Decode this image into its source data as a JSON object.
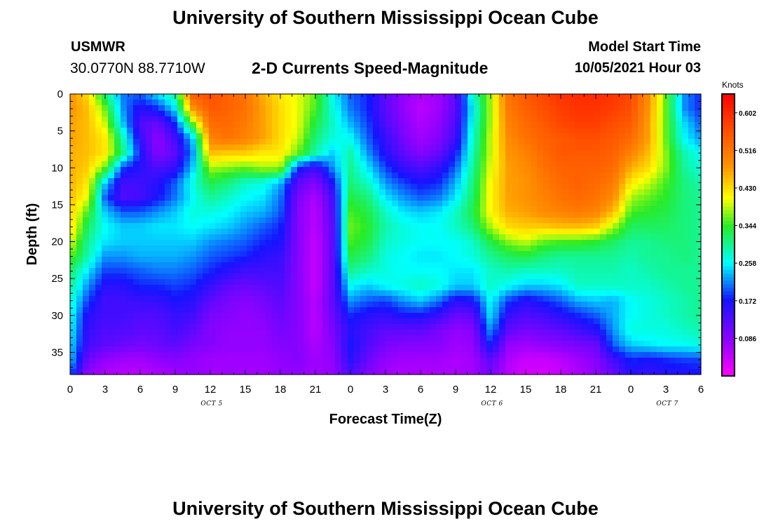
{
  "page": {
    "top_title": "University of Southern Mississippi Ocean Cube",
    "bottom_title": "University of Southern Mississippi Ocean Cube",
    "station": "USMWR",
    "coords": "30.0770N  88.7710W",
    "chart_title": "2-D Currents Speed-Magnitude",
    "model_start_label": "Model Start Time",
    "model_start_value": "10/05/2021 Hour 03"
  },
  "chart_data": {
    "type": "heatmap",
    "title": "2-D Currents Speed-Magnitude",
    "xlabel": "Forecast Time(Z)",
    "ylabel": "Depth (ft)",
    "x_range_hours": [
      0,
      54
    ],
    "y_range_ft": [
      0,
      38
    ],
    "x_tick_labels": [
      "0",
      "3",
      "6",
      "9",
      "12",
      "15",
      "18",
      "21",
      "0",
      "3",
      "6",
      "9",
      "12",
      "15",
      "18",
      "21",
      "0",
      "3",
      "6"
    ],
    "y_tick_labels": [
      "0",
      "5",
      "10",
      "15",
      "20",
      "25",
      "30",
      "35"
    ],
    "y_tick_values": [
      0,
      5,
      10,
      15,
      20,
      25,
      30,
      35
    ],
    "date_labels": [
      {
        "text": "OCT 5",
        "hour": 12
      },
      {
        "text": "OCT 6",
        "hour": 36
      },
      {
        "text": "OCT 7",
        "hour": 51
      }
    ],
    "colorbar": {
      "unit": "Knots",
      "range": [
        0.0,
        0.645
      ],
      "tick_labels": [
        "0.602",
        "0.516",
        "0.430",
        "0.344",
        "0.258",
        "0.172",
        "0.086"
      ],
      "tick_values": [
        0.602,
        0.516,
        0.43,
        0.344,
        0.258,
        0.172,
        0.086
      ]
    },
    "time_hours": [
      0,
      1.5,
      3,
      4.5,
      6,
      7.5,
      9,
      10.5,
      12,
      13.5,
      15,
      16.5,
      18,
      19.5,
      21,
      22.5,
      24,
      25.5,
      27,
      28.5,
      30,
      31.5,
      33,
      34.5,
      36,
      37.5,
      39,
      40.5,
      42,
      43.5,
      45,
      46.5,
      48,
      49.5,
      51,
      52.5,
      54
    ],
    "depths_ft": [
      0,
      2,
      4,
      6,
      8,
      10,
      12,
      14,
      16,
      18,
      20,
      22,
      24,
      26,
      28,
      30,
      32,
      34,
      36,
      38
    ],
    "speed_knots": [
      [
        0.48,
        0.43,
        0.31,
        0.21,
        0.2,
        0.25,
        0.3,
        0.55,
        0.56,
        0.54,
        0.52,
        0.46,
        0.42,
        0.4,
        0.36,
        0.26,
        0.2,
        0.18,
        0.12,
        0.08,
        0.06,
        0.07,
        0.12,
        0.28,
        0.38,
        0.52,
        0.55,
        0.57,
        0.59,
        0.6,
        0.6,
        0.59,
        0.57,
        0.49,
        0.36,
        0.22,
        0.18
      ],
      [
        0.48,
        0.45,
        0.36,
        0.22,
        0.16,
        0.18,
        0.25,
        0.48,
        0.55,
        0.54,
        0.52,
        0.47,
        0.43,
        0.4,
        0.35,
        0.27,
        0.21,
        0.18,
        0.12,
        0.08,
        0.05,
        0.07,
        0.12,
        0.26,
        0.38,
        0.51,
        0.54,
        0.56,
        0.58,
        0.59,
        0.59,
        0.58,
        0.56,
        0.48,
        0.36,
        0.22,
        0.18
      ],
      [
        0.47,
        0.45,
        0.39,
        0.24,
        0.13,
        0.11,
        0.18,
        0.36,
        0.53,
        0.53,
        0.51,
        0.47,
        0.43,
        0.4,
        0.33,
        0.28,
        0.23,
        0.19,
        0.13,
        0.09,
        0.06,
        0.08,
        0.13,
        0.27,
        0.38,
        0.5,
        0.53,
        0.55,
        0.57,
        0.58,
        0.58,
        0.56,
        0.55,
        0.47,
        0.36,
        0.25,
        0.2
      ],
      [
        0.47,
        0.45,
        0.42,
        0.29,
        0.15,
        0.08,
        0.14,
        0.24,
        0.5,
        0.52,
        0.5,
        0.47,
        0.43,
        0.39,
        0.31,
        0.27,
        0.26,
        0.2,
        0.15,
        0.1,
        0.07,
        0.09,
        0.14,
        0.28,
        0.39,
        0.49,
        0.52,
        0.54,
        0.55,
        0.56,
        0.56,
        0.55,
        0.53,
        0.47,
        0.36,
        0.26,
        0.22
      ],
      [
        0.46,
        0.45,
        0.42,
        0.31,
        0.17,
        0.09,
        0.12,
        0.22,
        0.45,
        0.44,
        0.44,
        0.42,
        0.42,
        0.36,
        0.29,
        0.24,
        0.29,
        0.22,
        0.16,
        0.12,
        0.09,
        0.11,
        0.17,
        0.29,
        0.39,
        0.48,
        0.5,
        0.53,
        0.55,
        0.55,
        0.55,
        0.54,
        0.5,
        0.45,
        0.37,
        0.29,
        0.26
      ],
      [
        0.46,
        0.44,
        0.36,
        0.19,
        0.16,
        0.13,
        0.15,
        0.24,
        0.38,
        0.37,
        0.36,
        0.38,
        0.38,
        0.18,
        0.14,
        0.22,
        0.3,
        0.25,
        0.19,
        0.15,
        0.13,
        0.15,
        0.2,
        0.3,
        0.4,
        0.47,
        0.49,
        0.52,
        0.54,
        0.54,
        0.54,
        0.53,
        0.46,
        0.43,
        0.37,
        0.3,
        0.27
      ],
      [
        0.46,
        0.42,
        0.24,
        0.14,
        0.14,
        0.16,
        0.2,
        0.27,
        0.33,
        0.31,
        0.28,
        0.27,
        0.23,
        0.12,
        0.09,
        0.17,
        0.31,
        0.28,
        0.22,
        0.19,
        0.17,
        0.18,
        0.23,
        0.31,
        0.41,
        0.47,
        0.48,
        0.51,
        0.53,
        0.54,
        0.53,
        0.51,
        0.42,
        0.39,
        0.35,
        0.31,
        0.29
      ],
      [
        0.45,
        0.4,
        0.2,
        0.13,
        0.14,
        0.17,
        0.21,
        0.26,
        0.3,
        0.28,
        0.26,
        0.25,
        0.21,
        0.1,
        0.06,
        0.14,
        0.33,
        0.31,
        0.25,
        0.22,
        0.2,
        0.21,
        0.25,
        0.32,
        0.41,
        0.47,
        0.48,
        0.5,
        0.52,
        0.53,
        0.52,
        0.49,
        0.38,
        0.36,
        0.34,
        0.31,
        0.3
      ],
      [
        0.44,
        0.35,
        0.24,
        0.2,
        0.2,
        0.22,
        0.24,
        0.27,
        0.27,
        0.26,
        0.24,
        0.23,
        0.2,
        0.09,
        0.05,
        0.13,
        0.35,
        0.33,
        0.28,
        0.25,
        0.24,
        0.25,
        0.28,
        0.33,
        0.41,
        0.46,
        0.47,
        0.49,
        0.5,
        0.51,
        0.5,
        0.45,
        0.35,
        0.34,
        0.33,
        0.31,
        0.3
      ],
      [
        0.43,
        0.32,
        0.26,
        0.24,
        0.24,
        0.25,
        0.25,
        0.26,
        0.25,
        0.24,
        0.22,
        0.2,
        0.18,
        0.09,
        0.05,
        0.12,
        0.36,
        0.34,
        0.29,
        0.27,
        0.26,
        0.26,
        0.28,
        0.31,
        0.38,
        0.43,
        0.44,
        0.44,
        0.45,
        0.45,
        0.44,
        0.38,
        0.32,
        0.32,
        0.32,
        0.31,
        0.3
      ],
      [
        0.4,
        0.3,
        0.25,
        0.24,
        0.24,
        0.24,
        0.24,
        0.24,
        0.22,
        0.21,
        0.2,
        0.18,
        0.17,
        0.09,
        0.04,
        0.12,
        0.35,
        0.33,
        0.28,
        0.27,
        0.26,
        0.26,
        0.26,
        0.28,
        0.33,
        0.37,
        0.39,
        0.36,
        0.35,
        0.35,
        0.34,
        0.32,
        0.3,
        0.3,
        0.31,
        0.31,
        0.3
      ],
      [
        0.36,
        0.29,
        0.22,
        0.22,
        0.23,
        0.23,
        0.23,
        0.22,
        0.2,
        0.19,
        0.18,
        0.16,
        0.15,
        0.09,
        0.04,
        0.12,
        0.33,
        0.31,
        0.27,
        0.26,
        0.25,
        0.25,
        0.26,
        0.27,
        0.3,
        0.32,
        0.33,
        0.31,
        0.3,
        0.3,
        0.3,
        0.3,
        0.29,
        0.3,
        0.3,
        0.31,
        0.3
      ],
      [
        0.32,
        0.25,
        0.19,
        0.19,
        0.2,
        0.21,
        0.21,
        0.2,
        0.18,
        0.16,
        0.14,
        0.14,
        0.14,
        0.09,
        0.04,
        0.12,
        0.3,
        0.28,
        0.27,
        0.26,
        0.26,
        0.26,
        0.25,
        0.25,
        0.28,
        0.29,
        0.28,
        0.28,
        0.28,
        0.29,
        0.29,
        0.29,
        0.28,
        0.29,
        0.3,
        0.3,
        0.3
      ],
      [
        0.3,
        0.22,
        0.16,
        0.16,
        0.18,
        0.18,
        0.19,
        0.18,
        0.15,
        0.12,
        0.11,
        0.12,
        0.13,
        0.09,
        0.04,
        0.12,
        0.26,
        0.24,
        0.26,
        0.27,
        0.28,
        0.27,
        0.24,
        0.24,
        0.28,
        0.26,
        0.24,
        0.24,
        0.25,
        0.28,
        0.28,
        0.28,
        0.28,
        0.28,
        0.29,
        0.3,
        0.3
      ],
      [
        0.28,
        0.19,
        0.14,
        0.14,
        0.15,
        0.15,
        0.17,
        0.16,
        0.12,
        0.1,
        0.09,
        0.1,
        0.12,
        0.09,
        0.05,
        0.12,
        0.22,
        0.2,
        0.19,
        0.22,
        0.24,
        0.21,
        0.16,
        0.17,
        0.26,
        0.19,
        0.16,
        0.18,
        0.2,
        0.23,
        0.24,
        0.23,
        0.26,
        0.27,
        0.28,
        0.29,
        0.3
      ],
      [
        0.27,
        0.16,
        0.14,
        0.14,
        0.13,
        0.13,
        0.15,
        0.14,
        0.1,
        0.09,
        0.08,
        0.09,
        0.11,
        0.09,
        0.05,
        0.11,
        0.18,
        0.16,
        0.15,
        0.17,
        0.17,
        0.15,
        0.11,
        0.12,
        0.25,
        0.15,
        0.13,
        0.14,
        0.16,
        0.18,
        0.2,
        0.23,
        0.26,
        0.27,
        0.28,
        0.29,
        0.3
      ],
      [
        0.26,
        0.15,
        0.13,
        0.13,
        0.12,
        0.12,
        0.14,
        0.12,
        0.09,
        0.08,
        0.08,
        0.08,
        0.1,
        0.09,
        0.05,
        0.1,
        0.16,
        0.14,
        0.12,
        0.12,
        0.12,
        0.1,
        0.08,
        0.09,
        0.22,
        0.12,
        0.1,
        0.11,
        0.12,
        0.14,
        0.16,
        0.22,
        0.27,
        0.27,
        0.27,
        0.28,
        0.29
      ],
      [
        0.25,
        0.14,
        0.12,
        0.11,
        0.1,
        0.11,
        0.12,
        0.1,
        0.09,
        0.08,
        0.08,
        0.08,
        0.09,
        0.09,
        0.06,
        0.09,
        0.17,
        0.13,
        0.1,
        0.09,
        0.09,
        0.09,
        0.07,
        0.08,
        0.18,
        0.08,
        0.07,
        0.08,
        0.09,
        0.1,
        0.11,
        0.2,
        0.24,
        0.25,
        0.26,
        0.26,
        0.27
      ],
      [
        0.24,
        0.11,
        0.08,
        0.07,
        0.07,
        0.08,
        0.09,
        0.08,
        0.07,
        0.07,
        0.07,
        0.07,
        0.08,
        0.09,
        0.07,
        0.08,
        0.16,
        0.11,
        0.08,
        0.07,
        0.07,
        0.07,
        0.06,
        0.07,
        0.12,
        0.06,
        0.04,
        0.04,
        0.05,
        0.07,
        0.09,
        0.14,
        0.18,
        0.17,
        0.18,
        0.19,
        0.19
      ],
      [
        0.2,
        0.08,
        0.06,
        0.05,
        0.05,
        0.06,
        0.07,
        0.08,
        0.07,
        0.07,
        0.07,
        0.07,
        0.08,
        0.08,
        0.07,
        0.08,
        0.13,
        0.09,
        0.07,
        0.06,
        0.06,
        0.06,
        0.06,
        0.07,
        0.1,
        0.05,
        0.03,
        0.03,
        0.04,
        0.06,
        0.08,
        0.11,
        0.16,
        0.15,
        0.16,
        0.16,
        0.17
      ]
    ]
  }
}
